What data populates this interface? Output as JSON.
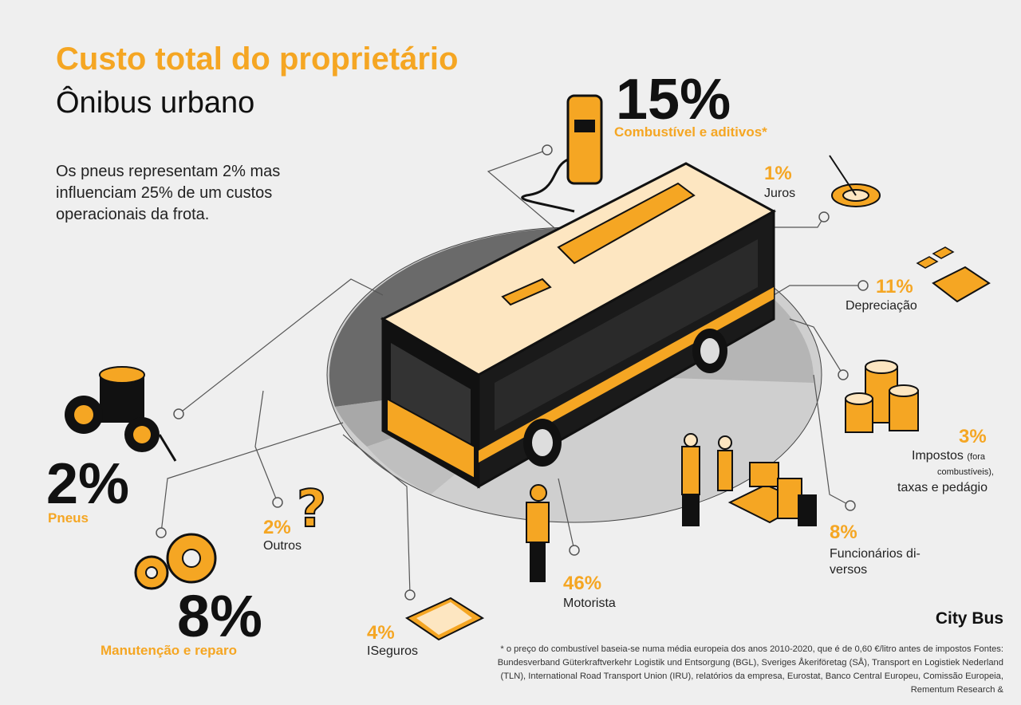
{
  "header": {
    "title": "Custo total do proprietário",
    "subtitle": "Ônibus urbano",
    "intro": "Os pneus representam 2% mas influenciam 25% de um custos operacionais da frota."
  },
  "items": {
    "fuel": {
      "pct": "15%",
      "label": "Combustível e aditivos*"
    },
    "interest": {
      "pct": "1%",
      "label": "Juros"
    },
    "depreciation": {
      "pct": "11%",
      "label": "Depreciação"
    },
    "taxes": {
      "pct": "3%",
      "label_main": "Impostos",
      "label_small1": "(fora",
      "label_small2": "combustíveis),",
      "label_end": "taxas e pedágio"
    },
    "staff": {
      "pct": "8%",
      "label_line1": "Funcionários di-",
      "label_line2": "versos"
    },
    "driver": {
      "pct": "46%",
      "label": "Motorista"
    },
    "insurance": {
      "pct": "4%",
      "label": "ISeguros"
    },
    "other": {
      "pct": "2%",
      "label": "Outros"
    },
    "tires": {
      "pct": "2%",
      "label": "Pneus"
    },
    "maintenance": {
      "pct": "8%",
      "label": "Manutenção e reparo"
    }
  },
  "brand": "City Bus",
  "footnote": "* o preço do combustível baseia-se numa média europeia dos anos 2010-2020, que é de 0,60 €/litro antes de impostos Fontes: Bundesverband Güterkraftverkehr Logistik und Entsorgung (BGL), Sveriges Åkeriföretag (SÅ), Transport en Logistiek Nederland (TLN), International Road Transport Union (IRU), relatórios da empresa, Eurostat, Banco Central Europeu, Comissão Europeia, Rementum Research &",
  "colors": {
    "accent": "#f5a623",
    "dark": "#111111",
    "background": "#efefef",
    "disc_dark": "#6e6e6e",
    "disc_light": "#c9c9c9"
  }
}
